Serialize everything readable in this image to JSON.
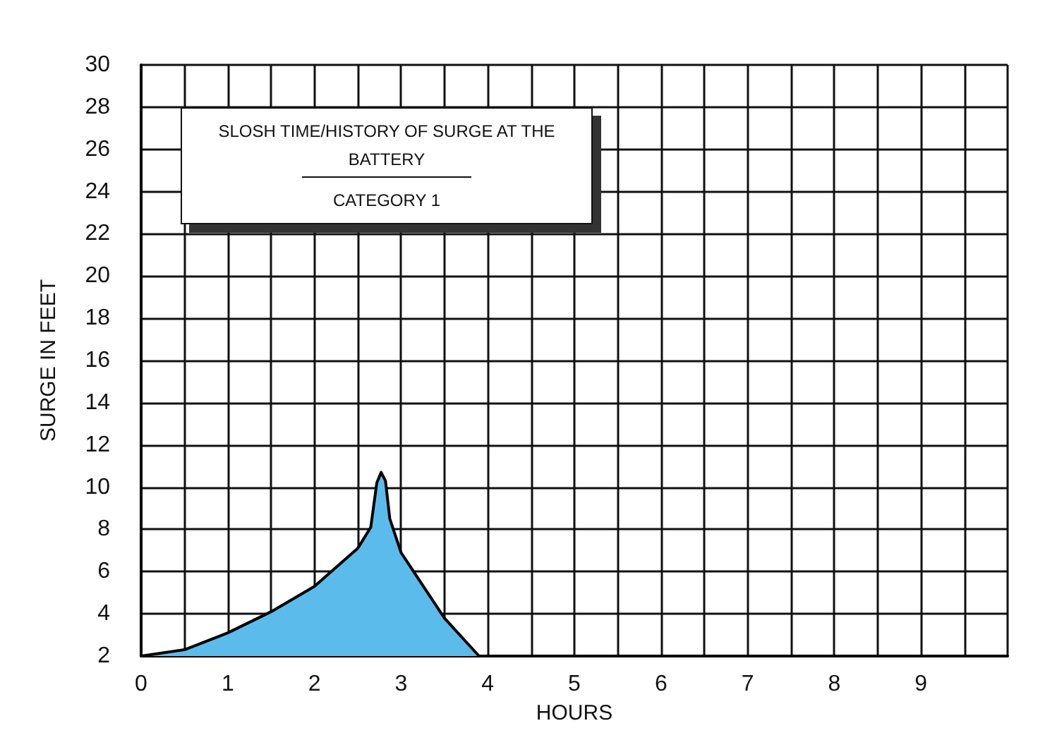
{
  "chart_data": {
    "type": "area",
    "title": "SLOSH TIME/HISTORY OF SURGE AT THE BATTERY",
    "subtitle": "CATEGORY 1",
    "xlabel": "HOURS",
    "ylabel": "SURGE IN FEET",
    "series": [
      {
        "color": "#5bbcec",
        "x": [
          0,
          0.5,
          1,
          1.5,
          2,
          2.5,
          2.65,
          2.72,
          2.77,
          2.82,
          2.87,
          3,
          3.5,
          3.9
        ],
        "values": [
          2,
          2.3,
          3.1,
          4.1,
          5.3,
          7.1,
          8.1,
          10.2,
          10.7,
          10.3,
          8.5,
          6.9,
          3.8,
          2
        ]
      }
    ],
    "xlim": [
      0,
      10
    ],
    "xticks": [
      0,
      {
        "value": 0.5,
        "label": null
      },
      1,
      {
        "value": 1.5,
        "label": null
      },
      2,
      {
        "value": 2.5,
        "label": null
      },
      3,
      {
        "value": 3.5,
        "label": null
      },
      4,
      {
        "value": 4.5,
        "label": null
      },
      5,
      {
        "value": 5.5,
        "label": null
      },
      6,
      {
        "value": 6.5,
        "label": null
      },
      7,
      {
        "value": 7.5,
        "label": null
      },
      8,
      {
        "value": 8.5,
        "label": null
      },
      9,
      {
        "value": 9.5,
        "label": null
      },
      {
        "value": 10,
        "label": null
      }
    ],
    "ylim": [
      2,
      30
    ],
    "yticks": [
      2,
      4,
      6,
      8,
      10,
      12,
      14,
      16,
      18,
      20,
      22,
      24,
      26,
      28,
      30
    ],
    "grid": true,
    "marker": "none",
    "line_style": "solid"
  }
}
